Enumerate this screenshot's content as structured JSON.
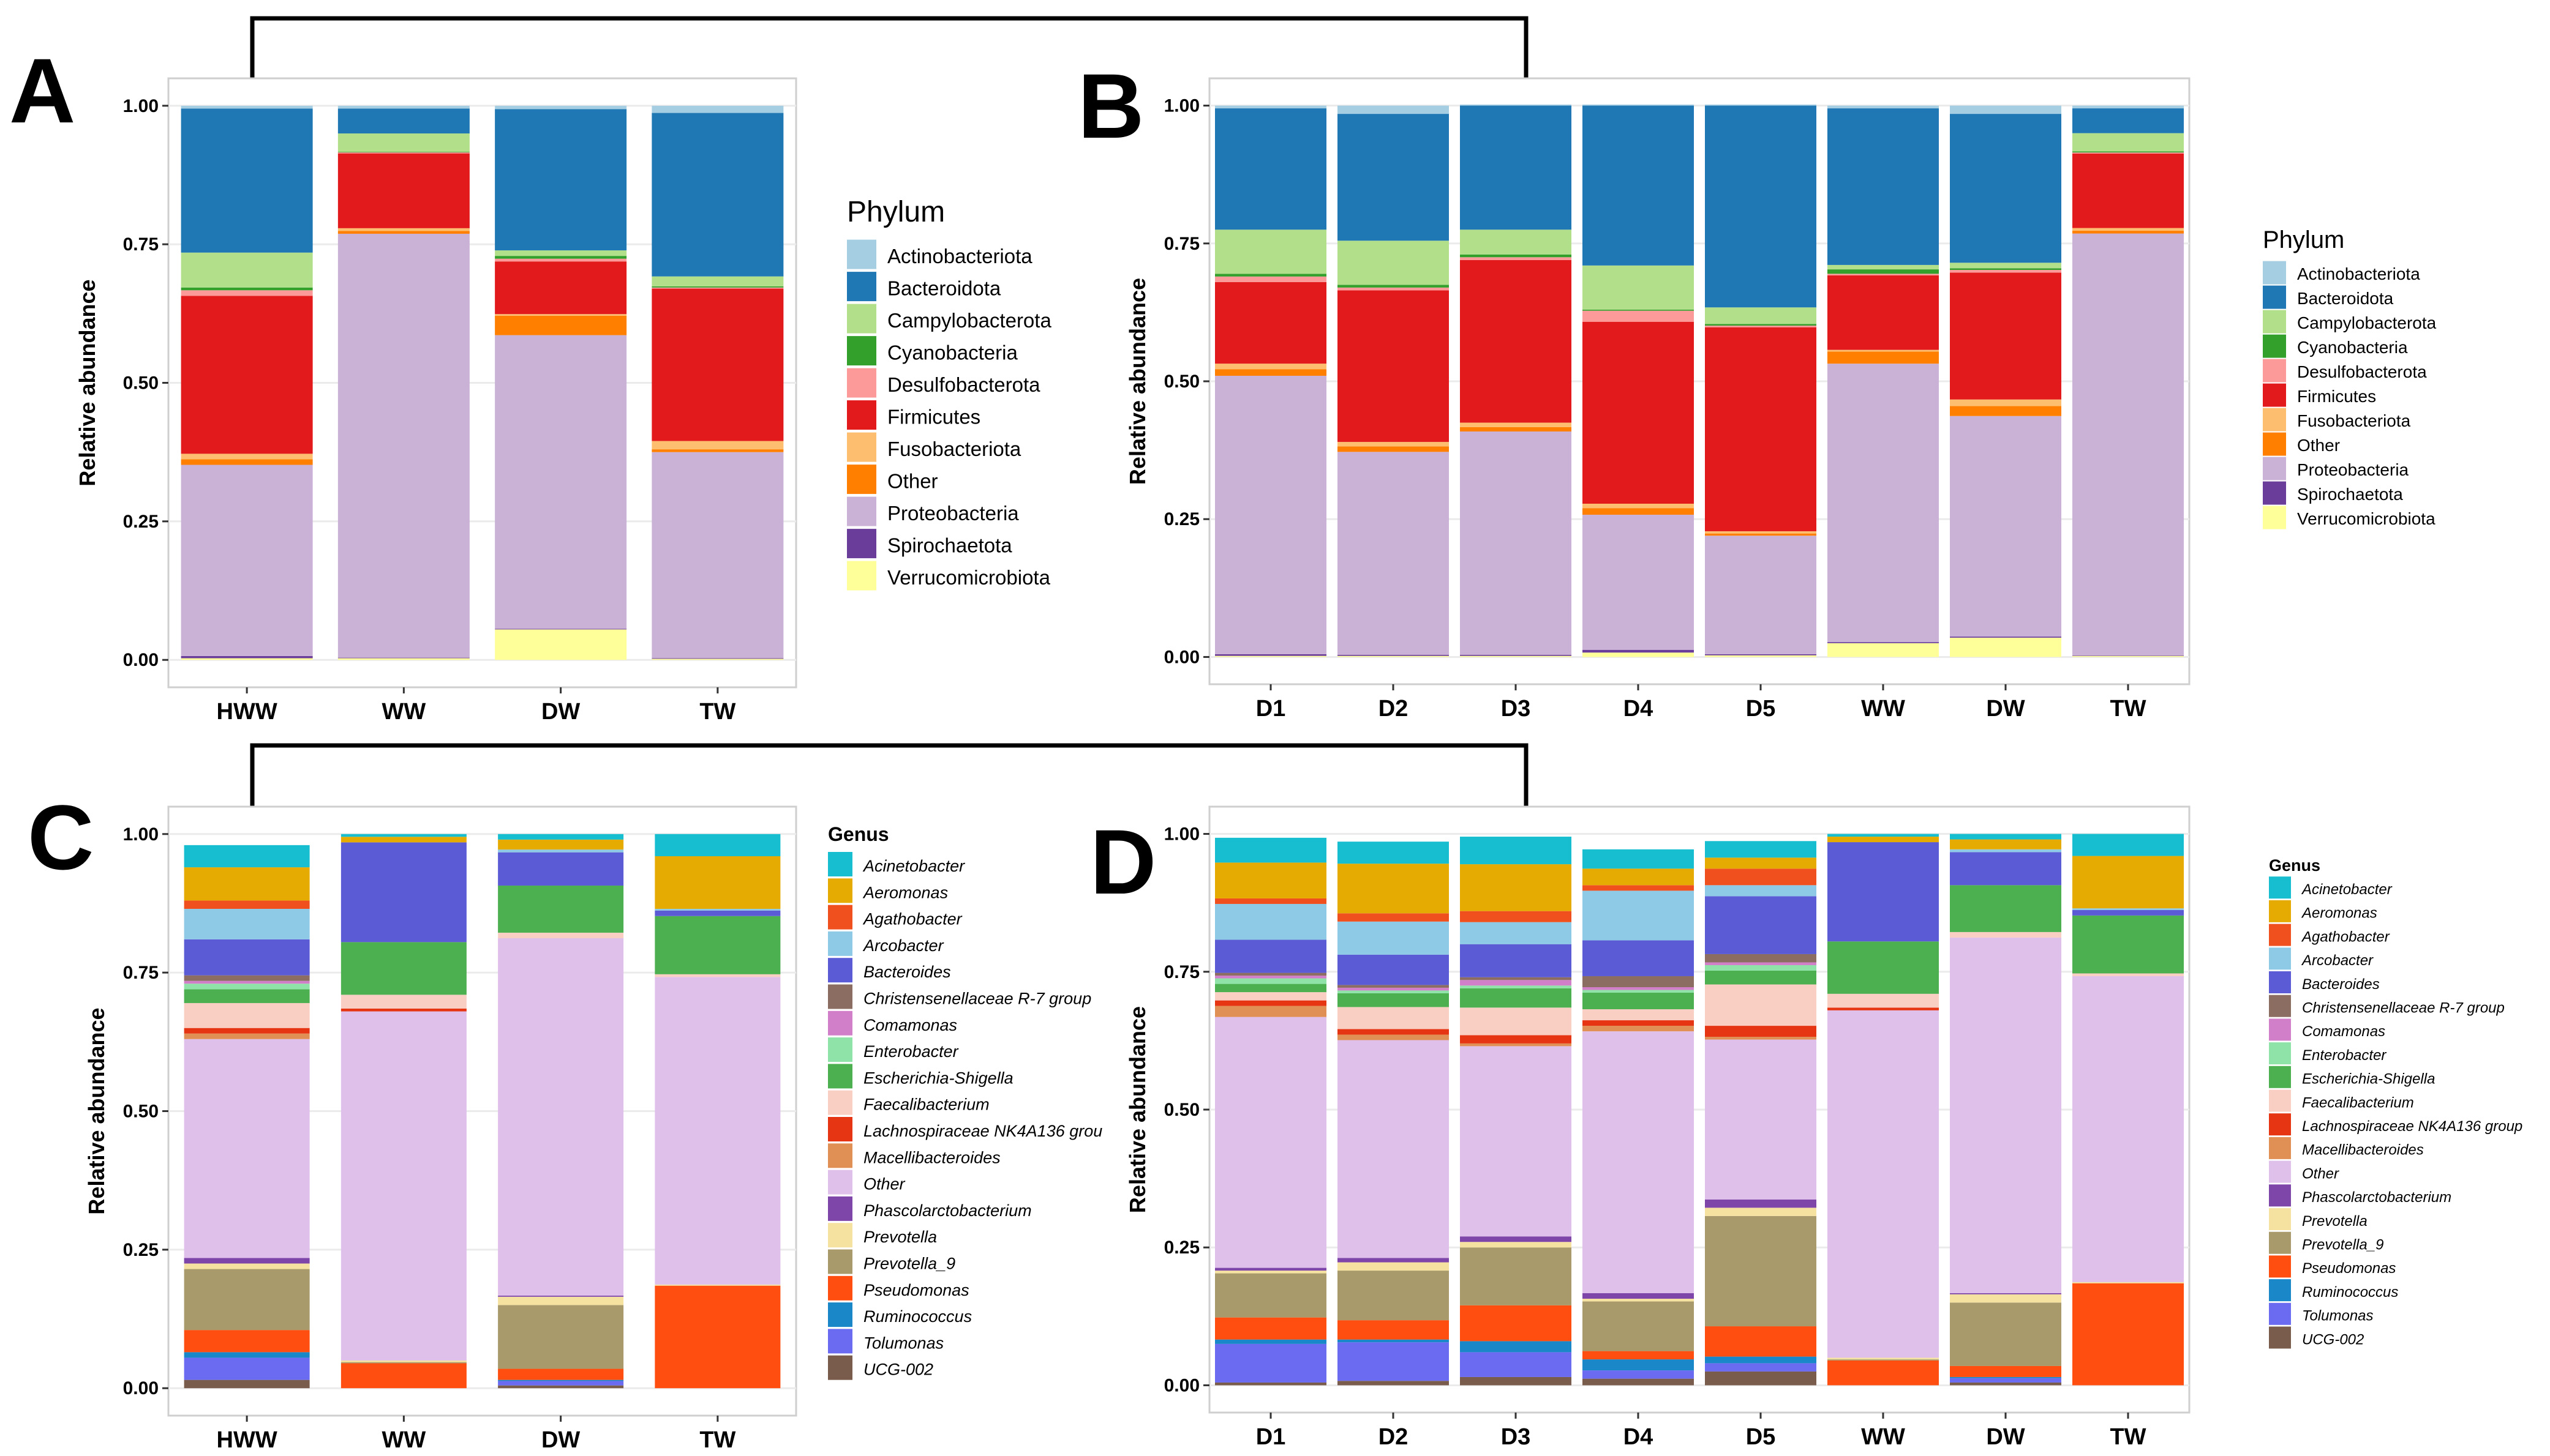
{
  "colors": {
    "Actinobacteriota": "#a6cee3",
    "Bacteroidota": "#1f78b4",
    "Campylobacterota": "#b2df8a",
    "Cyanobacteria": "#33a02c",
    "Desulfobacterota": "#fb9a99",
    "Firmicutes": "#e31a1c",
    "Fusobacteriota": "#fdbf6f",
    "Other": "#ff7f00",
    "Proteobacteria": "#cab2d6",
    "Spirochaetota": "#6a3d9a",
    "Verrucomicrobiota": "#ffff99",
    "Acinetobacter": "#17becf",
    "Aeromonas": "#e6ab02",
    "Agathobacter": "#f0501e",
    "Arcobacter": "#8ecae6",
    "Bacteroides": "#5b5bd6",
    "Christensenellaceae R-7 group": "#8c6d62",
    "Comamonas": "#d07fc8",
    "Enterobacter": "#8fe3a8",
    "Escherichia-Shigella": "#4caf50",
    "Faecalibacterium": "#f9cfc4",
    "Lachnospiraceae NK4A136 group": "#e63512",
    "Macellibacteroides": "#e08f55",
    "Other_genus": "#dfc0ea",
    "Phascolarctobacterium": "#7e46a8",
    "Prevotella": "#f5e1a0",
    "Prevotella_9": "#a89a6a",
    "Pseudomonas": "#ff4e0f",
    "Ruminococcus": "#1a87c9",
    "Tolumonas": "#6b6bf2",
    "UCG-002": "#7a5c4c"
  },
  "panels": {
    "A": "A",
    "B": "B",
    "C": "C",
    "D": "D"
  },
  "legend_titles": {
    "phylum": "Phylum",
    "genus": "Genus"
  },
  "phylum_legend": [
    "Actinobacteriota",
    "Bacteroidota",
    "Campylobacterota",
    "Cyanobacteria",
    "Desulfobacterota",
    "Firmicutes",
    "Fusobacteriota",
    "Other",
    "Proteobacteria",
    "Spirochaetota",
    "Verrucomicrobiota"
  ],
  "genus_legend": [
    "Acinetobacter",
    "Aeromonas",
    "Agathobacter",
    "Arcobacter",
    "Bacteroides",
    "Christensenellaceae R-7 group",
    "Comamonas",
    "Enterobacter",
    "Escherichia-Shigella",
    "Faecalibacterium",
    "Lachnospiraceae NK4A136 group",
    "Macellibacteroides",
    "Other",
    "Phascolarctobacterium",
    "Prevotella",
    "Prevotella_9",
    "Pseudomonas",
    "Ruminococcus",
    "Tolumonas",
    "UCG-002"
  ],
  "genus_legend_C_display": [
    "Acinetobacter",
    "Aeromonas",
    "Agathobacter",
    "Arcobacter",
    "Bacteroides",
    "Christensenellaceae R-7 group",
    "Comamonas",
    "Enterobacter",
    "Escherichia-Shigella",
    "Faecalibacterium",
    "Lachnospiraceae NK4A136 grou",
    "Macellibacteroides",
    "Other",
    "Phascolarctobacterium",
    "Prevotella",
    "Prevotella_9",
    "Pseudomonas",
    "Ruminococcus",
    "Tolumonas",
    "UCG-002"
  ],
  "chart_data": [
    {
      "panel": "A",
      "type": "bar",
      "stacked": true,
      "level": "phylum",
      "ylabel": "Relative abundance",
      "xlabel": "",
      "ylim": [
        0,
        1
      ],
      "yticks": [
        "0.00",
        "0.25",
        "0.50",
        "0.75",
        "1.00"
      ],
      "categories": [
        "HWW",
        "WW",
        "DW",
        "TW"
      ],
      "series": [
        {
          "name": "Verrucomicrobiota",
          "values": [
            0.003,
            0.003,
            0.055,
            0.002
          ]
        },
        {
          "name": "Spirochaetota",
          "values": [
            0.004,
            0.001,
            0.001,
            0.001
          ]
        },
        {
          "name": "Proteobacteria",
          "values": [
            0.345,
            0.765,
            0.53,
            0.372
          ]
        },
        {
          "name": "Other",
          "values": [
            0.01,
            0.005,
            0.035,
            0.005
          ]
        },
        {
          "name": "Fusobacteriota",
          "values": [
            0.01,
            0.005,
            0.003,
            0.015
          ]
        },
        {
          "name": "Firmicutes",
          "values": [
            0.285,
            0.135,
            0.095,
            0.275
          ]
        },
        {
          "name": "Desulfobacterota",
          "values": [
            0.01,
            0.002,
            0.005,
            0.002
          ]
        },
        {
          "name": "Cyanobacteria",
          "values": [
            0.005,
            0.001,
            0.005,
            0.002
          ]
        },
        {
          "name": "Campylobacterota",
          "values": [
            0.063,
            0.033,
            0.01,
            0.018
          ]
        },
        {
          "name": "Bacteroidota",
          "values": [
            0.26,
            0.045,
            0.255,
            0.295
          ]
        },
        {
          "name": "Actinobacteriota",
          "values": [
            0.005,
            0.005,
            0.006,
            0.013
          ]
        }
      ]
    },
    {
      "panel": "B",
      "type": "bar",
      "stacked": true,
      "level": "phylum",
      "ylabel": "Relative abundance",
      "xlabel": "",
      "ylim": [
        0,
        1
      ],
      "yticks": [
        "0.00",
        "0.25",
        "0.50",
        "0.75",
        "1.00"
      ],
      "categories": [
        "D1",
        "D2",
        "D3",
        "D4",
        "D5",
        "WW",
        "DW",
        "TW"
      ],
      "series": [
        {
          "name": "Verrucomicrobiota",
          "values": [
            0.002,
            0.002,
            0.002,
            0.008,
            0.003,
            0.025,
            0.035,
            0.002
          ]
        },
        {
          "name": "Spirochaetota",
          "values": [
            0.003,
            0.002,
            0.002,
            0.005,
            0.002,
            0.002,
            0.002,
            0.001
          ]
        },
        {
          "name": "Proteobacteria",
          "values": [
            0.505,
            0.368,
            0.405,
            0.245,
            0.215,
            0.505,
            0.4,
            0.765
          ]
        },
        {
          "name": "Other",
          "values": [
            0.012,
            0.01,
            0.008,
            0.012,
            0.004,
            0.022,
            0.018,
            0.005
          ]
        },
        {
          "name": "Fusobacteriota",
          "values": [
            0.01,
            0.008,
            0.008,
            0.008,
            0.004,
            0.003,
            0.012,
            0.005
          ]
        },
        {
          "name": "Firmicutes",
          "values": [
            0.148,
            0.275,
            0.295,
            0.33,
            0.37,
            0.135,
            0.23,
            0.135
          ]
        },
        {
          "name": "Desulfobacterota",
          "values": [
            0.01,
            0.005,
            0.005,
            0.02,
            0.003,
            0.003,
            0.005,
            0.002
          ]
        },
        {
          "name": "Cyanobacteria",
          "values": [
            0.005,
            0.005,
            0.005,
            0.002,
            0.003,
            0.008,
            0.003,
            0.002
          ]
        },
        {
          "name": "Campylobacterota",
          "values": [
            0.08,
            0.08,
            0.045,
            0.08,
            0.03,
            0.008,
            0.01,
            0.033
          ]
        },
        {
          "name": "Bacteroidota",
          "values": [
            0.22,
            0.23,
            0.225,
            0.29,
            0.366,
            0.284,
            0.27,
            0.045
          ]
        },
        {
          "name": "Actinobacteriota",
          "values": [
            0.005,
            0.015,
            0.002,
            0.002,
            0.002,
            0.005,
            0.015,
            0.005
          ]
        }
      ]
    },
    {
      "panel": "C",
      "type": "bar",
      "stacked": true,
      "level": "genus",
      "ylabel": "Relative abundance",
      "xlabel": "",
      "ylim": [
        0,
        1
      ],
      "yticks": [
        "0.00",
        "0.25",
        "0.50",
        "0.75",
        "1.00"
      ],
      "categories": [
        "HWW",
        "WW",
        "DW",
        "TW"
      ],
      "series": [
        {
          "name": "UCG-002",
          "values": [
            0.015,
            0.0,
            0.005,
            0.0
          ]
        },
        {
          "name": "Tolumonas",
          "values": [
            0.04,
            0.0,
            0.008,
            0.0
          ]
        },
        {
          "name": "Ruminococcus",
          "values": [
            0.01,
            0.0,
            0.002,
            0.0
          ]
        },
        {
          "name": "Pseudomonas",
          "values": [
            0.04,
            0.045,
            0.02,
            0.185
          ]
        },
        {
          "name": "Prevotella_9",
          "values": [
            0.11,
            0.002,
            0.115,
            0.0
          ]
        },
        {
          "name": "Prevotella",
          "values": [
            0.01,
            0.003,
            0.015,
            0.002
          ]
        },
        {
          "name": "Phascolarctobacterium",
          "values": [
            0.01,
            0.0,
            0.002,
            0.0
          ]
        },
        {
          "name": "Other",
          "values": [
            0.395,
            0.63,
            0.645,
            0.555
          ]
        },
        {
          "name": "Macellibacteroides",
          "values": [
            0.01,
            0.0,
            0.0,
            0.0
          ]
        },
        {
          "name": "Lachnospiraceae NK4A136 group",
          "values": [
            0.01,
            0.005,
            0.0,
            0.0
          ]
        },
        {
          "name": "Faecalibacterium",
          "values": [
            0.045,
            0.025,
            0.01,
            0.005
          ]
        },
        {
          "name": "Escherichia-Shigella",
          "values": [
            0.025,
            0.095,
            0.085,
            0.105
          ]
        },
        {
          "name": "Enterobacter",
          "values": [
            0.01,
            0.0,
            0.0,
            0.0
          ]
        },
        {
          "name": "Comamonas",
          "values": [
            0.005,
            0.0,
            0.0,
            0.0
          ]
        },
        {
          "name": "Christensenellaceae R-7 group",
          "values": [
            0.01,
            0.0,
            0.0,
            0.0
          ]
        },
        {
          "name": "Bacteroides",
          "values": [
            0.065,
            0.18,
            0.06,
            0.01
          ]
        },
        {
          "name": "Arcobacter",
          "values": [
            0.055,
            0.0,
            0.005,
            0.003
          ]
        },
        {
          "name": "Agathobacter",
          "values": [
            0.015,
            0.0,
            0.0,
            0.0
          ]
        },
        {
          "name": "Aeromonas",
          "values": [
            0.06,
            0.01,
            0.018,
            0.095
          ]
        },
        {
          "name": "Acinetobacter",
          "values": [
            0.04,
            0.005,
            0.01,
            0.04
          ]
        }
      ]
    },
    {
      "panel": "D",
      "type": "bar",
      "stacked": true,
      "level": "genus",
      "ylabel": "Relative abundance",
      "xlabel": "",
      "ylim": [
        0,
        1
      ],
      "yticks": [
        "0.00",
        "0.25",
        "0.50",
        "0.75",
        "1.00"
      ],
      "categories": [
        "D1",
        "D2",
        "D3",
        "D4",
        "D5",
        "WW",
        "DW",
        "TW"
      ],
      "series": [
        {
          "name": "UCG-002",
          "values": [
            0.005,
            0.008,
            0.015,
            0.012,
            0.025,
            0.0,
            0.005,
            0.0
          ]
        },
        {
          "name": "Tolumonas",
          "values": [
            0.07,
            0.07,
            0.045,
            0.015,
            0.015,
            0.0,
            0.008,
            0.0
          ]
        },
        {
          "name": "Ruminococcus",
          "values": [
            0.008,
            0.005,
            0.02,
            0.02,
            0.012,
            0.0,
            0.002,
            0.0
          ]
        },
        {
          "name": "Pseudomonas",
          "values": [
            0.04,
            0.035,
            0.065,
            0.015,
            0.055,
            0.045,
            0.02,
            0.185
          ]
        },
        {
          "name": "Prevotella_9",
          "values": [
            0.08,
            0.09,
            0.105,
            0.09,
            0.2,
            0.002,
            0.115,
            0.0
          ]
        },
        {
          "name": "Prevotella",
          "values": [
            0.005,
            0.015,
            0.01,
            0.005,
            0.015,
            0.003,
            0.015,
            0.002
          ]
        },
        {
          "name": "Phascolarctobacterium",
          "values": [
            0.005,
            0.008,
            0.01,
            0.01,
            0.015,
            0.0,
            0.002,
            0.0
          ]
        },
        {
          "name": "Other",
          "values": [
            0.455,
            0.395,
            0.345,
            0.475,
            0.29,
            0.63,
            0.645,
            0.555
          ]
        },
        {
          "name": "Macellibacteroides",
          "values": [
            0.02,
            0.01,
            0.005,
            0.01,
            0.005,
            0.0,
            0.0,
            0.0
          ]
        },
        {
          "name": "Lachnospiraceae NK4A136 group",
          "values": [
            0.01,
            0.01,
            0.015,
            0.01,
            0.02,
            0.005,
            0.0,
            0.0
          ]
        },
        {
          "name": "Faecalibacterium",
          "values": [
            0.015,
            0.04,
            0.05,
            0.02,
            0.075,
            0.025,
            0.01,
            0.005
          ]
        },
        {
          "name": "Escherichia-Shigella",
          "values": [
            0.015,
            0.025,
            0.035,
            0.03,
            0.025,
            0.095,
            0.085,
            0.105
          ]
        },
        {
          "name": "Enterobacter",
          "values": [
            0.01,
            0.005,
            0.005,
            0.005,
            0.01,
            0.0,
            0.0,
            0.0
          ]
        },
        {
          "name": "Comamonas",
          "values": [
            0.005,
            0.005,
            0.01,
            0.005,
            0.005,
            0.0,
            0.0,
            0.0
          ]
        },
        {
          "name": "Christensenellaceae R-7 group",
          "values": [
            0.005,
            0.005,
            0.005,
            0.02,
            0.015,
            0.0,
            0.0,
            0.0
          ]
        },
        {
          "name": "Bacteroides",
          "values": [
            0.06,
            0.055,
            0.06,
            0.065,
            0.105,
            0.18,
            0.06,
            0.01
          ]
        },
        {
          "name": "Arcobacter",
          "values": [
            0.065,
            0.06,
            0.04,
            0.09,
            0.02,
            0.0,
            0.005,
            0.003
          ]
        },
        {
          "name": "Agathobacter",
          "values": [
            0.01,
            0.015,
            0.02,
            0.01,
            0.03,
            0.0,
            0.0,
            0.0
          ]
        },
        {
          "name": "Aeromonas",
          "values": [
            0.065,
            0.09,
            0.085,
            0.03,
            0.02,
            0.01,
            0.018,
            0.095
          ]
        },
        {
          "name": "Acinetobacter",
          "values": [
            0.045,
            0.04,
            0.05,
            0.035,
            0.03,
            0.005,
            0.01,
            0.04
          ]
        }
      ]
    }
  ]
}
